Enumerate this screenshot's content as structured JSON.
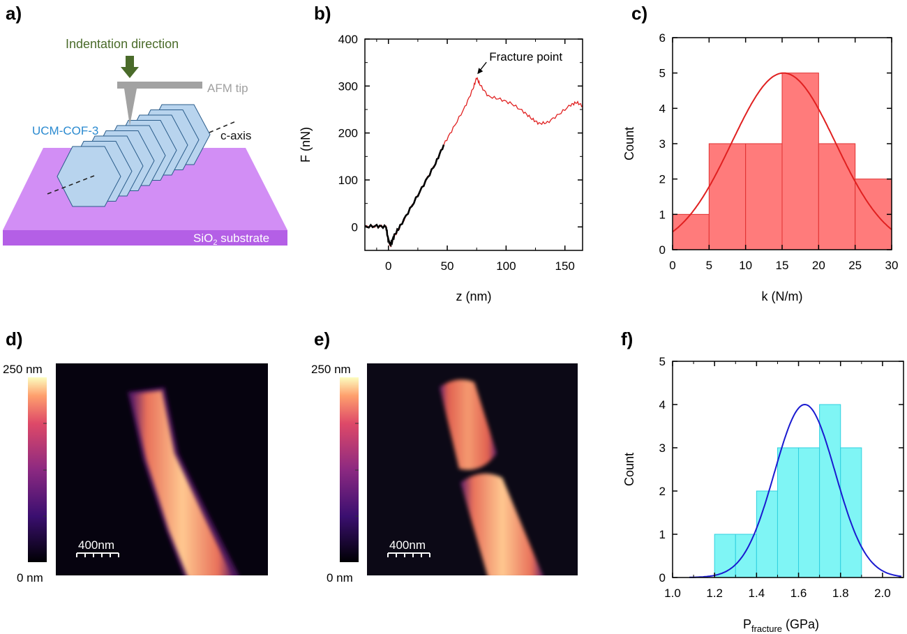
{
  "panels": {
    "a": "a)",
    "b": "b)",
    "c": "c)",
    "d": "d)",
    "e": "e)",
    "f": "f)"
  },
  "schematic": {
    "indentation_label": "Indentation direction",
    "tip_label": "AFM tip",
    "crystal_label": "UCM-COF-3",
    "axis_label": "c-axis",
    "substrate_prefix": "SiO",
    "substrate_sub": "2",
    "substrate_suffix": " substrate",
    "colors": {
      "arrow": "#4a6b2a",
      "tip": "#a0a0a0",
      "crystal_fill": "#b8d4ee",
      "crystal_edge": "#2a5c8a",
      "substrate_top": "#d090f0",
      "substrate_side": "#b060e0",
      "crystal_label": "#2a8ad0"
    }
  },
  "afm_images": {
    "colorbar_top": "250 nm",
    "colorbar_bottom": "0 nm",
    "scalebar_label": "400nm"
  },
  "chart_data": [
    {
      "id": "b",
      "type": "line",
      "xlabel": "z (nm)",
      "ylabel": "F (nN)",
      "xlim": [
        -20,
        165
      ],
      "ylim": [
        -50,
        400
      ],
      "xticks": [
        0,
        50,
        100,
        150
      ],
      "yticks": [
        0,
        100,
        200,
        300,
        400
      ],
      "annotation": "Fracture point",
      "annotation_point": [
        75,
        318
      ],
      "series": [
        {
          "color": "#e02020",
          "x": [
            -20,
            -10,
            -2,
            0,
            2,
            5,
            10,
            20,
            30,
            40,
            47,
            55,
            65,
            72,
            75,
            78,
            85,
            95,
            105,
            115,
            122,
            128,
            135,
            145,
            155,
            160,
            165
          ],
          "y": [
            0,
            2,
            0,
            -30,
            -40,
            -20,
            0,
            45,
            90,
            135,
            175,
            210,
            255,
            295,
            318,
            302,
            278,
            272,
            262,
            245,
            230,
            220,
            222,
            240,
            260,
            265,
            258
          ]
        },
        {
          "color": "#000000",
          "x": [
            -20,
            -10,
            -2,
            0,
            2,
            5,
            10,
            20,
            30,
            40,
            47
          ],
          "y": [
            0,
            2,
            0,
            -30,
            -38,
            -18,
            2,
            45,
            90,
            135,
            175
          ]
        }
      ]
    },
    {
      "id": "c",
      "type": "bar",
      "xlabel": "k (N/m)",
      "ylabel": "Count",
      "xlim": [
        0,
        30
      ],
      "ylim": [
        0,
        6
      ],
      "xticks": [
        0,
        5,
        10,
        15,
        20,
        25,
        30
      ],
      "yticks": [
        0,
        1,
        2,
        3,
        4,
        5,
        6
      ],
      "bins": [
        [
          0,
          5
        ],
        [
          5,
          10
        ],
        [
          10,
          15
        ],
        [
          15,
          20
        ],
        [
          20,
          25
        ],
        [
          25,
          30
        ]
      ],
      "values": [
        1,
        3,
        3,
        5,
        3,
        2
      ],
      "bar_color": "#ff7b7b",
      "edge_color": "#e03030",
      "fit": {
        "type": "gaussian",
        "amplitude": 5,
        "mean": 15.2,
        "sigma": 7.1,
        "color": "#e02020"
      }
    },
    {
      "id": "f",
      "type": "bar",
      "xlabel_main": "P",
      "xlabel_sub": "fracture",
      "xlabel_unit": " (GPa)",
      "ylabel": "Count",
      "xlim": [
        1.0,
        2.1
      ],
      "ylim": [
        0,
        5
      ],
      "xticks": [
        1.0,
        1.2,
        1.4,
        1.6,
        1.8,
        2.0
      ],
      "xtick_labels": [
        "1.0",
        "1.2",
        "1.4",
        "1.6",
        "1.8",
        "2.0"
      ],
      "yticks": [
        0,
        1,
        2,
        3,
        4,
        5
      ],
      "bins": [
        [
          1.2,
          1.3
        ],
        [
          1.3,
          1.4
        ],
        [
          1.4,
          1.5
        ],
        [
          1.5,
          1.6
        ],
        [
          1.6,
          1.7
        ],
        [
          1.7,
          1.8
        ],
        [
          1.8,
          1.9
        ]
      ],
      "values": [
        1,
        1,
        2,
        3,
        3,
        4,
        3
      ],
      "bar_color": "#7ff5f5",
      "edge_color": "#30d0e0",
      "fit": {
        "type": "gaussian",
        "amplitude": 4,
        "mean": 1.63,
        "sigma": 0.145,
        "xrange": [
          1.08,
          2.09
        ],
        "color": "#1a1ad0"
      }
    }
  ]
}
